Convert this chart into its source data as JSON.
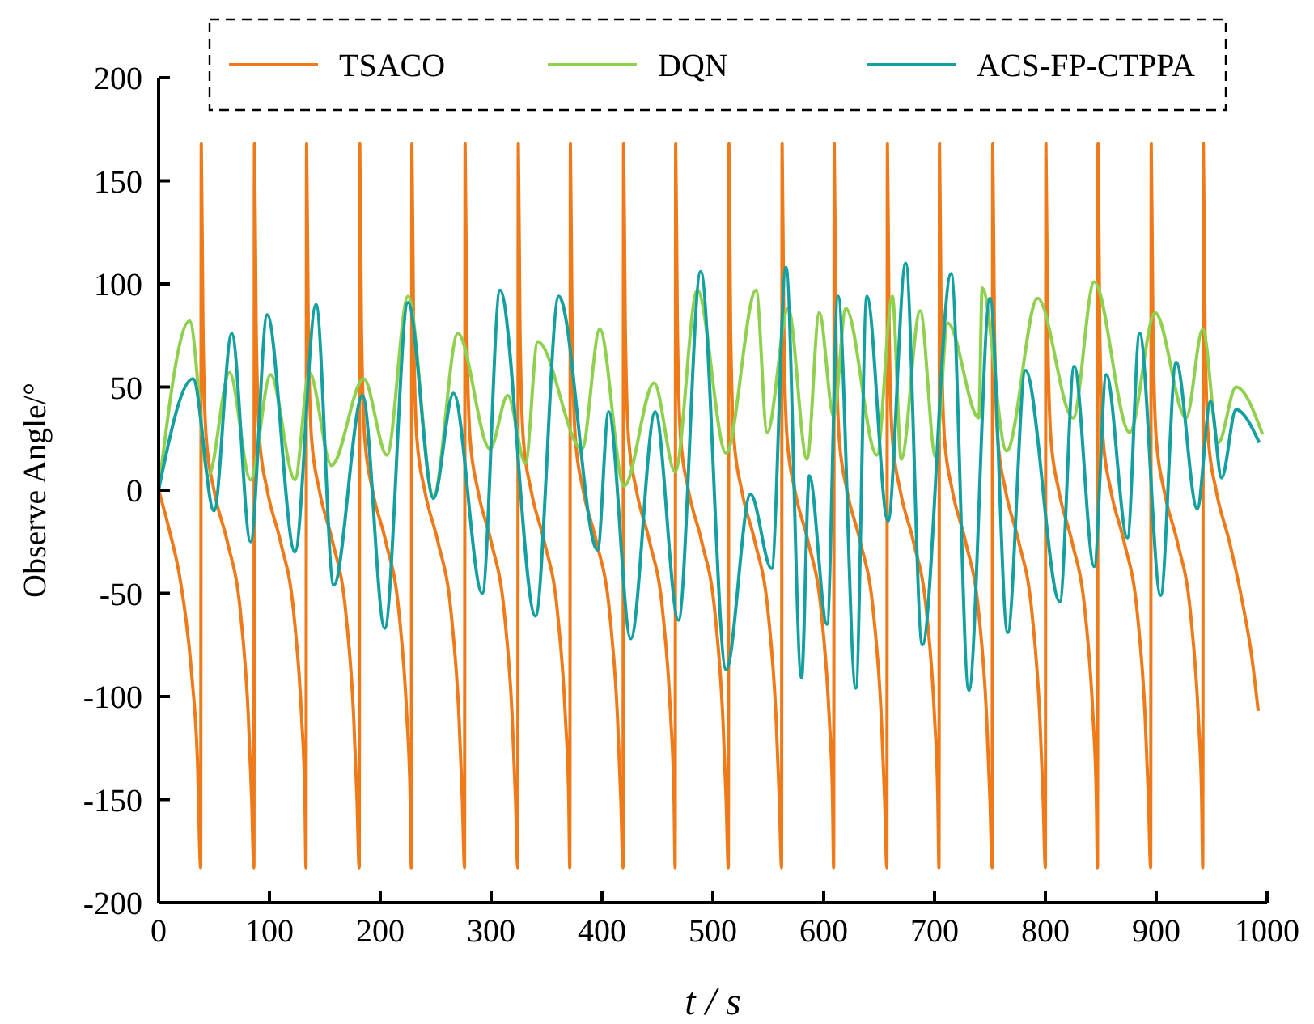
{
  "chart_data": {
    "type": "line",
    "xlabel": "t / s",
    "ylabel": "Observe Angle/°",
    "xlim": [
      0,
      1000
    ],
    "ylim": [
      -200,
      200
    ],
    "xticks": [
      0,
      100,
      200,
      300,
      400,
      500,
      600,
      700,
      800,
      900,
      1000
    ],
    "yticks": [
      -200,
      -150,
      -100,
      -50,
      0,
      50,
      100,
      150,
      200
    ],
    "grid": false,
    "legend": "top",
    "series": [
      {
        "name": "TSACO",
        "color": "#ee7a1a",
        "x": [
          0,
          10,
          20,
          30,
          35,
          38,
          38.5,
          40,
          43,
          50,
          62,
          74,
          81,
          84,
          86,
          86.5,
          88,
          91,
          98,
          110,
          122,
          129,
          132,
          133,
          133.5,
          135,
          138,
          145,
          157,
          169,
          176,
          179,
          181,
          181.5,
          183,
          186,
          193,
          205,
          217,
          224,
          227,
          228,
          228.5,
          230,
          233,
          240,
          252,
          264,
          271,
          274,
          276,
          276.5,
          278,
          281,
          288,
          300,
          312,
          319,
          322,
          324,
          324.5,
          326,
          329,
          336,
          348,
          360,
          367,
          370,
          371,
          371.5,
          373,
          376,
          383,
          395,
          407,
          414,
          417,
          419,
          419.5,
          421,
          424,
          431,
          443,
          455,
          462,
          465,
          466,
          466.5,
          468,
          471,
          478,
          490,
          502,
          509,
          512,
          514,
          514.5,
          516,
          519,
          526,
          538,
          550,
          557,
          560,
          562,
          562.5,
          564,
          567,
          574,
          586,
          598,
          605,
          608,
          609,
          609.5,
          611,
          614,
          621,
          633,
          645,
          652,
          655,
          657,
          657.5,
          659,
          662,
          669,
          681,
          693,
          700,
          703,
          704,
          704.5,
          706,
          709,
          716,
          728,
          740,
          747,
          750,
          752,
          752.5,
          754,
          757,
          764,
          776,
          788,
          795,
          798,
          800,
          800.5,
          802,
          805,
          812,
          824,
          836,
          843,
          846,
          847,
          847.5,
          849,
          852,
          859,
          871,
          883,
          890,
          893,
          895,
          895.5,
          897,
          900,
          907,
          919,
          931,
          938,
          941,
          942,
          942.5,
          944,
          947,
          954,
          966,
          978,
          986,
          992
        ],
        "values": [
          0,
          -20,
          -45,
          -90,
          -130,
          -183,
          168,
          80,
          25,
          0,
          -25,
          -60,
          -110,
          -150,
          -183,
          168,
          80,
          25,
          0,
          -25,
          -60,
          -110,
          -150,
          -183,
          168,
          80,
          25,
          0,
          -25,
          -60,
          -110,
          -150,
          -183,
          168,
          80,
          25,
          0,
          -25,
          -60,
          -110,
          -150,
          -183,
          168,
          80,
          25,
          0,
          -25,
          -60,
          -110,
          -150,
          -183,
          168,
          80,
          25,
          0,
          -25,
          -60,
          -110,
          -150,
          -183,
          168,
          80,
          25,
          0,
          -25,
          -60,
          -110,
          -150,
          -183,
          168,
          80,
          25,
          0,
          -25,
          -60,
          -110,
          -150,
          -183,
          168,
          80,
          25,
          0,
          -25,
          -60,
          -110,
          -150,
          -183,
          168,
          80,
          25,
          0,
          -25,
          -60,
          -110,
          -150,
          -183,
          168,
          80,
          25,
          0,
          -25,
          -60,
          -110,
          -150,
          -183,
          168,
          80,
          25,
          0,
          -25,
          -60,
          -110,
          -150,
          -183,
          168,
          80,
          25,
          0,
          -25,
          -60,
          -110,
          -150,
          -183,
          168,
          80,
          25,
          0,
          -25,
          -60,
          -110,
          -150,
          -183,
          168,
          80,
          25,
          0,
          -25,
          -60,
          -110,
          -150,
          -183,
          168,
          80,
          25,
          0,
          -25,
          -60,
          -110,
          -150,
          -183,
          168,
          80,
          25,
          0,
          -25,
          -60,
          -110,
          -150,
          -183,
          168,
          80,
          25,
          0,
          -25,
          -60,
          -110,
          -150,
          -183,
          168,
          80,
          25,
          0,
          -25,
          -60,
          -110,
          -150,
          -183,
          168,
          80,
          25,
          0,
          -25,
          -55,
          -80,
          -107
        ]
      },
      {
        "name": "DQN",
        "color": "#8fd14f",
        "x": [
          0,
          28,
          45,
          64,
          83,
          101,
          123,
          136,
          156,
          185,
          206,
          225,
          248,
          270,
          299,
          315,
          331,
          342,
          382,
          398,
          420,
          447,
          466,
          486,
          512,
          539,
          549,
          568,
          585,
          596,
          609,
          620,
          648,
          662,
          670,
          687,
          701,
          712,
          740,
          743,
          765,
          793,
          825,
          844,
          876,
          899,
          927,
          942,
          956,
          972,
          996
        ],
        "values": [
          0,
          82,
          7,
          57,
          5,
          56,
          5,
          57,
          12,
          54,
          17,
          94,
          -3,
          76,
          20,
          46,
          13,
          72,
          20,
          78,
          2,
          52,
          9,
          97,
          18,
          97,
          28,
          88,
          15,
          86,
          36,
          88,
          17,
          94,
          15,
          87,
          16,
          81,
          35,
          98,
          19,
          93,
          35,
          101,
          28,
          86,
          35,
          78,
          23,
          50,
          27
        ]
      },
      {
        "name": "ACS-FP-CTPPA",
        "color": "#14a0a0",
        "x": [
          0,
          31,
          50,
          66,
          83,
          98,
          123,
          142,
          158,
          184,
          204,
          225,
          248,
          266,
          292,
          308,
          340,
          361,
          396,
          406,
          426,
          448,
          469,
          489,
          512,
          534,
          553,
          566,
          580,
          587,
          603,
          613,
          629,
          639,
          658,
          674,
          689,
          715,
          731,
          750,
          766,
          782,
          813,
          826,
          844,
          855,
          874,
          885,
          904,
          918,
          937,
          949,
          959,
          972,
          993
        ],
        "values": [
          0,
          54,
          -10,
          76,
          -25,
          85,
          -30,
          90,
          -46,
          46,
          -67,
          91,
          -4,
          47,
          -50,
          97,
          -61,
          94,
          -29,
          38,
          -72,
          38,
          -63,
          106,
          -87,
          -2,
          -38,
          108,
          -91,
          7,
          -65,
          94,
          -96,
          94,
          -15,
          110,
          -75,
          105,
          -97,
          93,
          -69,
          58,
          -54,
          60,
          -37,
          56,
          -23,
          76,
          -51,
          62,
          -9,
          43,
          6,
          39,
          23
        ]
      }
    ]
  }
}
